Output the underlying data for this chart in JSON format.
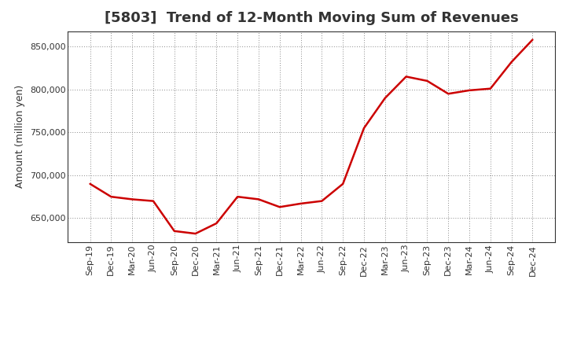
{
  "title": "[5803]  Trend of 12-Month Moving Sum of Revenues",
  "ylabel": "Amount (million yen)",
  "line_color": "#CC0000",
  "background_color": "#FFFFFF",
  "grid_color": "#888888",
  "ylim": [
    622000,
    868000
  ],
  "yticks": [
    650000,
    700000,
    750000,
    800000,
    850000
  ],
  "labels": [
    "Sep-19",
    "Dec-19",
    "Mar-20",
    "Jun-20",
    "Sep-20",
    "Dec-20",
    "Mar-21",
    "Jun-21",
    "Sep-21",
    "Dec-21",
    "Mar-22",
    "Jun-22",
    "Sep-22",
    "Dec-22",
    "Mar-23",
    "Jun-23",
    "Sep-23",
    "Dec-23",
    "Mar-24",
    "Jun-24",
    "Sep-24",
    "Dec-24"
  ],
  "values": [
    690000,
    675000,
    672000,
    670000,
    635000,
    632000,
    644000,
    675000,
    672000,
    663000,
    667000,
    670000,
    690000,
    755000,
    790000,
    815000,
    810000,
    795000,
    799000,
    801000,
    832000,
    858000
  ],
  "title_fontsize": 13,
  "title_color": "#333333",
  "tick_label_color": "#333333",
  "ylabel_fontsize": 9,
  "xtick_fontsize": 8,
  "ytick_fontsize": 8,
  "linewidth": 1.8,
  "figsize": [
    7.2,
    4.4
  ],
  "dpi": 100
}
